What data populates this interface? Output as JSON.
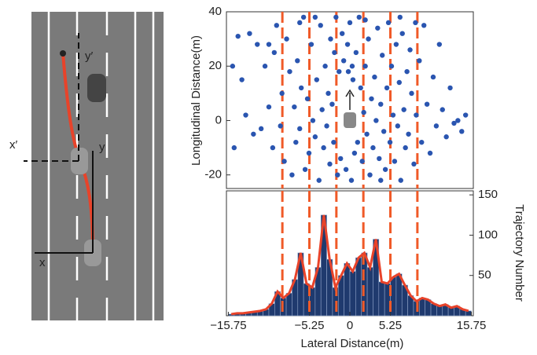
{
  "chart_data": [
    {
      "type": "scatter",
      "y_label": "Longitudinal Distance(m)",
      "color": "#2a55b0",
      "xlim": [
        -16,
        16
      ],
      "ylim": [
        -25,
        40
      ],
      "yticks": [
        -20,
        0,
        20,
        40
      ],
      "vlines": [
        -8.75,
        -5.25,
        -1.75,
        1.75,
        5.25,
        8.75
      ],
      "vline_color": "#f05a28",
      "x": [
        -14.5,
        -13,
        -12,
        -14,
        -13.5,
        -12.5,
        -11,
        -10.5,
        -10,
        -9.8,
        -9.5,
        -9,
        -8.8,
        -8.5,
        -8.2,
        -7.8,
        -7.5,
        -7.2,
        -7,
        -6.8,
        -6.5,
        -6.3,
        -6,
        -5.8,
        -5.5,
        -5.3,
        -5,
        -4.8,
        -4.5,
        -4.3,
        -4,
        -3.8,
        -3.6,
        -3.4,
        -3.2,
        -3,
        -2.8,
        -2.6,
        -2.5,
        -2.3,
        -2.1,
        -2,
        -1.8,
        -1.6,
        -1.4,
        -1.2,
        -1,
        -0.8,
        -0.5,
        -0.3,
        0,
        0.2,
        0.4,
        0.6,
        0.8,
        1,
        1.2,
        1.4,
        1.6,
        1.8,
        2,
        2.2,
        2.4,
        2.6,
        2.8,
        3,
        3.2,
        3.4,
        3.6,
        3.8,
        4,
        4.2,
        4.4,
        4.6,
        4.8,
        5,
        5.2,
        5.4,
        5.6,
        5.8,
        6,
        6.2,
        6.4,
        6.6,
        6.8,
        7,
        7.2,
        7.4,
        7.6,
        7.8,
        8,
        8.3,
        8.6,
        9,
        9.3,
        9.6,
        10,
        10.4,
        10.8,
        11.2,
        11.6,
        12,
        12.5,
        13,
        13.5,
        14,
        14.5,
        15,
        -15,
        -15.2,
        -11.5,
        -10.5,
        8.5,
        6.5,
        -6.5,
        -4.5,
        2,
        -0.2,
        0.3,
        4
      ],
      "y": [
        31,
        32,
        28,
        15,
        2,
        -5,
        20,
        5,
        -10,
        25,
        35,
        -2,
        10,
        -15,
        30,
        18,
        -20,
        5,
        -8,
        22,
        -3,
        12,
        38,
        -18,
        8,
        -12,
        28,
        0,
        -6,
        15,
        -22,
        35,
        4,
        -10,
        20,
        -2,
        10,
        -16,
        30,
        6,
        -8,
        25,
        38,
        -20,
        18,
        -14,
        32,
        22,
        -18,
        28,
        36,
        -22,
        15,
        -12,
        25,
        -8,
        38,
        12,
        -15,
        3,
        20,
        -5,
        30,
        -20,
        8,
        -10,
        16,
        0,
        34,
        -14,
        6,
        24,
        -4,
        -18,
        12,
        36,
        -8,
        20,
        2,
        -15,
        28,
        -2,
        14,
        -22,
        32,
        4,
        -10,
        18,
        -5,
        26,
        10,
        -16,
        2,
        22,
        -8,
        35,
        6,
        -12,
        16,
        -2,
        28,
        4,
        -6,
        12,
        -1,
        0,
        -4,
        2,
        -10,
        20,
        -3,
        28,
        36,
        38,
        36,
        38,
        37,
        18,
        20,
        -22
      ]
    },
    {
      "type": "histogram",
      "x_label": "Lateral Distance(m)",
      "y_label": "Trajectory Number",
      "color": "#1f3a6e",
      "line_color": "#e8432a",
      "xlim": [
        -16,
        16
      ],
      "ylim": [
        0,
        155
      ],
      "xticks": [
        {
          "value": -15.75,
          "label": "−15.75"
        },
        {
          "value": -5.25,
          "label": "−5.25"
        },
        0,
        5.25,
        15.75
      ],
      "yticks": [
        50,
        100,
        150
      ],
      "vlines": [
        -8.75,
        -5.25,
        -1.75,
        1.75,
        5.25,
        8.75
      ],
      "vline_color": "#f05a28",
      "bins": [
        -15.75,
        -15,
        -14.25,
        -13.5,
        -12.75,
        -12,
        -11.25,
        -10.5,
        -9.75,
        -9,
        -8.25,
        -7.5,
        -6.75,
        -6,
        -5.25,
        -4.5,
        -3.75,
        -3,
        -2.25,
        -1.5,
        -0.75,
        0,
        0.75,
        1.5,
        2.25,
        3,
        3.75,
        4.5,
        5.25,
        6,
        6.75,
        7.5,
        8.25,
        9,
        9.75,
        10.5,
        11.25,
        12,
        12.75,
        13.5,
        14.25,
        15,
        15.75
      ],
      "values": [
        2,
        3,
        3,
        4,
        5,
        6,
        8,
        15,
        30,
        22,
        28,
        45,
        78,
        40,
        35,
        60,
        125,
        70,
        35,
        50,
        65,
        55,
        72,
        78,
        60,
        95,
        42,
        40,
        48,
        52,
        38,
        25,
        18,
        22,
        20,
        15,
        12,
        14,
        10,
        12,
        8,
        6
      ]
    }
  ],
  "diagram": {
    "labels": [
      "y′",
      "x′",
      "y",
      "x"
    ]
  }
}
